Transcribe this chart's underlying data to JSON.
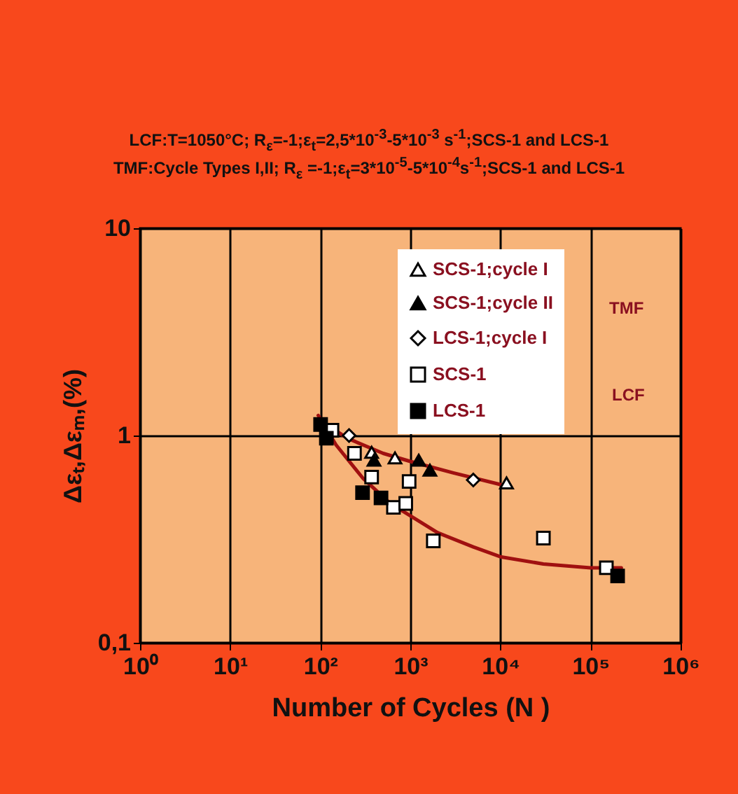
{
  "chart_data": {
    "type": "scatter",
    "title": "LCF:T=1050°C; R$_{ε}$=-1;ε$_{t}$=2,5*10$^{-3}$-5*10$^{-3}$ s$^{-1}$;SCS-1 and LCS-1",
    "subtitle": "TMF:Cycle Types I,II; R$_{ε}$ =-1;ε$_{t}$=3*10$^{-5}$-5*10$^{-4}$s$^{-1}$;SCS-1 and LCS-1",
    "xlabel": "Number of Cycles (N )",
    "ylabel": "Δεₜ,Δεₘ,(%)",
    "log": "xy",
    "grid": true,
    "legend": "top right",
    "annotations": [
      "TMF",
      "LCF"
    ],
    "xlim": [
      1,
      1000000
    ],
    "xticks": [
      {
        "value": 1,
        "label": "10⁰"
      },
      {
        "value": 10,
        "label": "10¹"
      },
      {
        "value": 100,
        "label": "10²"
      },
      {
        "value": 1000,
        "label": "10³"
      },
      {
        "value": 10000,
        "label": "10⁴"
      },
      {
        "value": 100000,
        "label": "10⁵"
      },
      {
        "value": 1000000,
        "label": "10⁶"
      }
    ],
    "ylim": [
      0.1,
      10
    ],
    "yticks": [
      {
        "value": 0.1,
        "label": "0,1"
      },
      1,
      10
    ],
    "series": [
      {
        "type": "line",
        "color": "#a01010",
        "x": [
          95,
          200,
          500,
          1000,
          3000,
          10000
        ],
        "values": [
          1.2,
          0.97,
          0.82,
          0.75,
          0.66,
          0.58
        ]
      },
      {
        "type": "line",
        "color": "#a01010",
        "x": [
          95,
          150,
          300,
          600,
          1000,
          2000,
          5000,
          10000,
          30000,
          100000,
          220000
        ],
        "values": [
          1.25,
          0.9,
          0.62,
          0.47,
          0.41,
          0.34,
          0.29,
          0.26,
          0.24,
          0.23,
          0.23
        ]
      },
      {
        "name": "SCS-1;cycle I",
        "marker": "triangle",
        "color": "#ffffff",
        "x": [
          372,
          676,
          11700
        ],
        "values": [
          0.83,
          0.78,
          0.59
        ]
      },
      {
        "name": "SCS-1;cycle II",
        "marker": "triangle",
        "color": "#000000",
        "x": [
          395,
          1240,
          1650
        ],
        "values": [
          0.76,
          0.76,
          0.68
        ]
      },
      {
        "name": "LCS-1;cycle I",
        "marker": "diamond",
        "color": "#ffffff",
        "x": [
          209,
          5000
        ],
        "values": [
          1.0,
          0.61
        ]
      },
      {
        "name": "SCS-1",
        "marker": "square",
        "color": "#ffffff",
        "x": [
          135,
          240,
          372,
          650,
          890,
          970,
          1800,
          30000,
          150000
        ],
        "values": [
          1.06,
          0.82,
          0.63,
          0.45,
          0.47,
          0.6,
          0.31,
          0.32,
          0.23
        ]
      },
      {
        "name": "LCS-1",
        "marker": "square",
        "color": "#000000",
        "x": [
          101,
          117,
          295,
          473,
          200000
        ],
        "values": [
          1.13,
          0.97,
          0.53,
          0.5,
          0.21
        ]
      }
    ]
  }
}
